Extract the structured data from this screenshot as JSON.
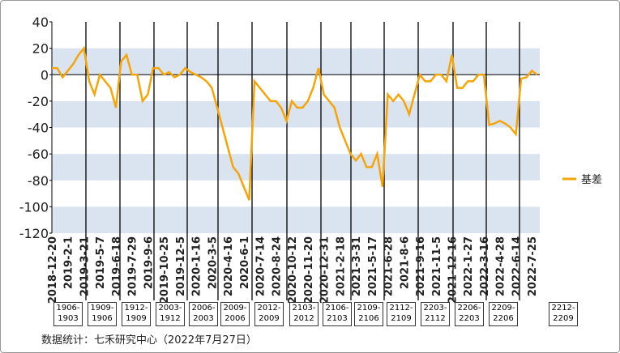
{
  "chart_data": {
    "type": "line",
    "categories": [
      "2018-12-20",
      null,
      null,
      "2019-2-1",
      null,
      null,
      "2019-3-21",
      null,
      null,
      "2019-5-7",
      null,
      null,
      "2019-6-18",
      null,
      null,
      "2019-7-29",
      null,
      null,
      "2019-9-6",
      null,
      null,
      "2019-10-25",
      null,
      null,
      "2019-12-5",
      null,
      null,
      "2020-1-16",
      null,
      null,
      "2020-3-5",
      null,
      null,
      "2020-4-16",
      null,
      null,
      "2020-6-1",
      null,
      null,
      "2020-7-14",
      null,
      null,
      "2020-8-24",
      null,
      null,
      "2020-10-12",
      null,
      null,
      "2020-11-20",
      null,
      null,
      "2020-12-31",
      null,
      null,
      "2021-2-18",
      null,
      null,
      "2021-3-31",
      null,
      null,
      "2021-5-17",
      null,
      null,
      "2021-6-28",
      null,
      null,
      "2021-8-6",
      null,
      null,
      "2021-9-16",
      null,
      null,
      "2021-11-5",
      null,
      null,
      "2021-12-16",
      null,
      null,
      "2022-1-27",
      null,
      null,
      "2022-3-16",
      null,
      null,
      "2022-4-28",
      null,
      null,
      "2022-6-14",
      null,
      null,
      "2022-7-25",
      null
    ],
    "series": [
      {
        "name": "基差",
        "color": "#f5a50a",
        "values": [
          5,
          5,
          -2,
          3,
          8,
          15,
          20,
          -5,
          -15,
          0,
          -5,
          -10,
          -25,
          10,
          15,
          0,
          0,
          -20,
          -15,
          5,
          5,
          0,
          2,
          -2,
          0,
          5,
          2,
          0,
          -2,
          -5,
          -10,
          -25,
          -40,
          -55,
          -70,
          -75,
          -85,
          -95,
          -5,
          -10,
          -15,
          -20,
          -20,
          -25,
          -35,
          -20,
          -25,
          -25,
          -20,
          -10,
          5,
          -15,
          -20,
          -25,
          -40,
          -50,
          -60,
          -65,
          -60,
          -70,
          -70,
          -60,
          -85,
          -15,
          -20,
          -15,
          -20,
          -30,
          -15,
          0,
          -5,
          -5,
          0,
          0,
          -5,
          15,
          -10,
          -10,
          -5,
          -5,
          0,
          0,
          -38,
          -37,
          -35,
          -37,
          -40,
          -45,
          -3,
          -2,
          3,
          0
        ]
      }
    ],
    "ylim": [
      -120,
      40
    ],
    "yticks": [
      40,
      20,
      0,
      -20,
      -40,
      -60,
      -80,
      -100,
      -120
    ],
    "grid": "bands",
    "legend": "right",
    "contracts": [
      "1906-1903",
      "1909-1906",
      "1912-1909",
      "2003-1912",
      "2006-2003",
      "2009-2006",
      "2012-2009",
      "2103-2012",
      "2106-2103",
      "2109-2106",
      "2112-2109",
      "2203-2112",
      "2206-2203",
      "2209-2206",
      "2212-2209"
    ],
    "source": "数据统计：七禾研究中心（2022年7月27日）"
  }
}
